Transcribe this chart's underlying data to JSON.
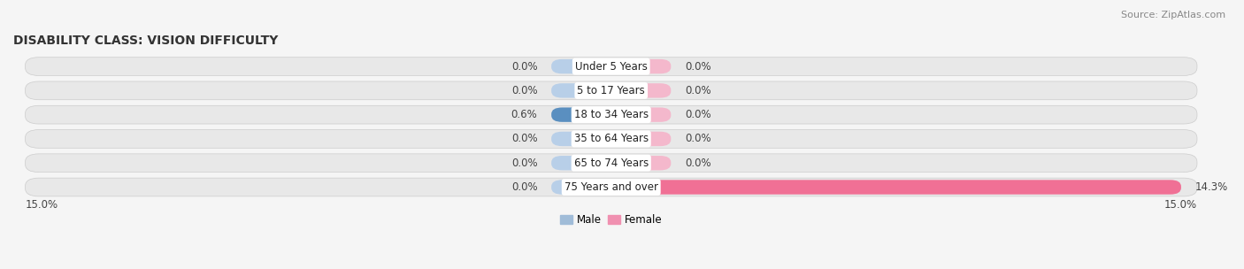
{
  "title": "DISABILITY CLASS: VISION DIFFICULTY",
  "source": "Source: ZipAtlas.com",
  "categories": [
    "Under 5 Years",
    "5 to 17 Years",
    "18 to 34 Years",
    "35 to 64 Years",
    "65 to 74 Years",
    "75 Years and over"
  ],
  "male_values": [
    0.0,
    0.0,
    0.6,
    0.0,
    0.0,
    0.0
  ],
  "female_values": [
    0.0,
    0.0,
    0.0,
    0.0,
    0.0,
    14.3
  ],
  "xlim": 15.0,
  "male_stub_color": "#b8cfe8",
  "male_bar_color": "#5a8fc0",
  "female_stub_color": "#f4b8cc",
  "female_bar_color": "#f07095",
  "row_bg_color": "#e8e8e8",
  "fig_bg_color": "#f5f5f5",
  "legend_male_color": "#a0bcd8",
  "legend_female_color": "#f090b0",
  "stub_size": 1.5,
  "title_fontsize": 10,
  "source_fontsize": 8,
  "label_fontsize": 8.5,
  "category_fontsize": 8.5,
  "axis_label_fontsize": 8.5
}
